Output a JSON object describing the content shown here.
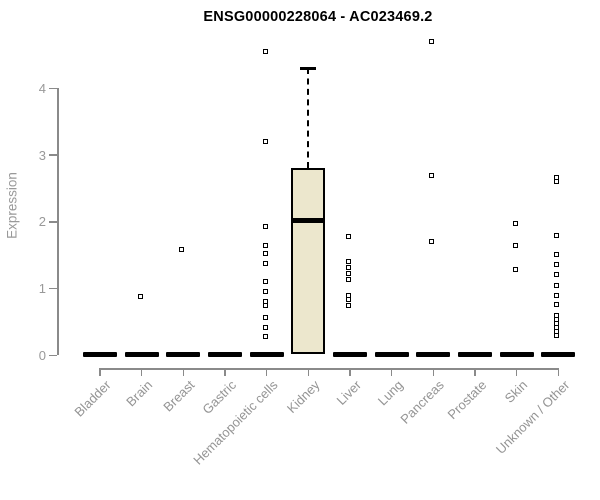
{
  "title": "ENSG00000228064 - AC023469.2",
  "chart_data": {
    "type": "boxplot",
    "title": "ENSG00000228064 - AC023469.2",
    "xlabel": "",
    "ylabel": "Expression",
    "ylim": [
      0,
      4.8
    ],
    "yticks": [
      0,
      1,
      2,
      3,
      4
    ],
    "grid": false,
    "legend": "none",
    "categories": [
      "Bladder",
      "Brain",
      "Breast",
      "Gastric",
      "Hematopoietic cells",
      "Kidney",
      "Liver",
      "Lung",
      "Pancreas",
      "Prostate",
      "Skin",
      "Unknown / Other"
    ],
    "series": [
      {
        "category": "Bladder",
        "box": {
          "q1": 0,
          "median": 0,
          "q3": 0
        },
        "points": []
      },
      {
        "category": "Brain",
        "box": {
          "q1": 0,
          "median": 0,
          "q3": 0
        },
        "points": [
          0.88
        ]
      },
      {
        "category": "Breast",
        "box": {
          "q1": 0,
          "median": 0,
          "q3": 0
        },
        "points": [
          1.58
        ]
      },
      {
        "category": "Gastric",
        "box": {
          "q1": 0,
          "median": 0,
          "q3": 0
        },
        "points": []
      },
      {
        "category": "Hematopoietic cells",
        "box": {
          "q1": 0,
          "median": 0,
          "q3": 0
        },
        "points": [
          4.55,
          3.21,
          1.93,
          1.65,
          1.52,
          1.38,
          1.1,
          0.95,
          0.8,
          0.74,
          0.56,
          0.42,
          0.28
        ]
      },
      {
        "category": "Kidney",
        "box": {
          "q1": 0.02,
          "median": 2.02,
          "q3": 2.8,
          "whisker_high": 4.3
        },
        "points": []
      },
      {
        "category": "Liver",
        "box": {
          "q1": 0,
          "median": 0,
          "q3": 0
        },
        "points": [
          1.78,
          1.4,
          1.31,
          1.22,
          1.13,
          0.9,
          0.84,
          0.75
        ]
      },
      {
        "category": "Lung",
        "box": {
          "q1": 0,
          "median": 0,
          "q3": 0
        },
        "points": []
      },
      {
        "category": "Pancreas",
        "box": {
          "q1": 0,
          "median": 0,
          "q3": 0
        },
        "points": [
          4.7,
          2.7,
          1.7
        ]
      },
      {
        "category": "Prostate",
        "box": {
          "q1": 0,
          "median": 0,
          "q3": 0
        },
        "points": []
      },
      {
        "category": "Skin",
        "box": {
          "q1": 0,
          "median": 0,
          "q3": 0
        },
        "points": [
          1.97,
          1.65,
          1.28
        ]
      },
      {
        "category": "Unknown / Other",
        "box": {
          "q1": 0,
          "median": 0,
          "q3": 0
        },
        "points": [
          2.66,
          2.6,
          1.79,
          1.51,
          1.36,
          1.21,
          1.05,
          0.89,
          0.76,
          0.6,
          0.54,
          0.48,
          0.42,
          0.36,
          0.3
        ]
      }
    ],
    "colors": {
      "box_fill": "#ECE7CD",
      "box_border": "#000000",
      "marker": "#000000",
      "axis": "#8a8a8a",
      "tick_text": "#999999",
      "title_text": "#000000"
    }
  }
}
